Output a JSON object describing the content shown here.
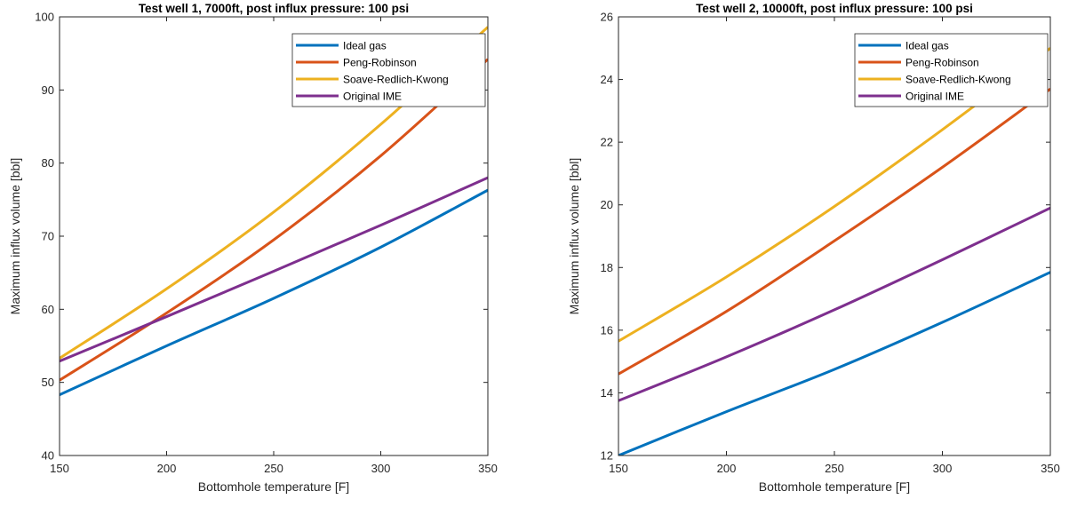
{
  "chart_data": [
    {
      "type": "line",
      "title": "Test well 1, 7000ft, post influx pressure: 100 psi",
      "xlabel": "Bottomhole temperature [F]",
      "ylabel": "Maximum influx volume [bbl]",
      "xlim": [
        150,
        350
      ],
      "ylim": [
        40,
        100
      ],
      "xticks": [
        150,
        200,
        250,
        300,
        350
      ],
      "yticks": [
        40,
        50,
        60,
        70,
        80,
        90,
        100
      ],
      "grid": false,
      "legend_position": "top-right",
      "x": [
        150,
        200,
        250,
        300,
        350
      ],
      "series": [
        {
          "name": "Ideal gas",
          "color": "#0072BD",
          "values": [
            48.3,
            55.0,
            61.5,
            68.5,
            76.3
          ]
        },
        {
          "name": "Peng-Robinson",
          "color": "#D95319",
          "values": [
            50.3,
            59.5,
            69.5,
            81.0,
            94.2
          ]
        },
        {
          "name": "Soave-Redlich-Kwong",
          "color": "#EDB120",
          "values": [
            53.3,
            62.8,
            73.3,
            85.3,
            98.6
          ]
        },
        {
          "name": "Original IME",
          "color": "#7E2F8E",
          "values": [
            52.9,
            59.0,
            65.2,
            71.5,
            78.0
          ]
        }
      ]
    },
    {
      "type": "line",
      "title": "Test well 2, 10000ft, post influx pressure: 100 psi",
      "xlabel": "Bottomhole temperature [F]",
      "ylabel": "Maximum influx volume [bbl]",
      "xlim": [
        150,
        350
      ],
      "ylim": [
        12,
        26
      ],
      "xticks": [
        150,
        200,
        250,
        300,
        350
      ],
      "yticks": [
        12,
        14,
        16,
        18,
        20,
        22,
        24,
        26
      ],
      "grid": false,
      "legend_position": "top-right",
      "x": [
        150,
        200,
        250,
        300,
        350
      ],
      "series": [
        {
          "name": "Ideal gas",
          "color": "#0072BD",
          "values": [
            12.0,
            13.4,
            14.75,
            16.25,
            17.85
          ]
        },
        {
          "name": "Peng-Robinson",
          "color": "#D95319",
          "values": [
            14.6,
            16.6,
            18.85,
            21.2,
            23.7
          ]
        },
        {
          "name": "Soave-Redlich-Kwong",
          "color": "#EDB120",
          "values": [
            15.65,
            17.7,
            19.95,
            22.4,
            25.0
          ]
        },
        {
          "name": "Original IME",
          "color": "#7E2F8E",
          "values": [
            13.75,
            15.15,
            16.65,
            18.25,
            19.9
          ]
        }
      ]
    }
  ]
}
